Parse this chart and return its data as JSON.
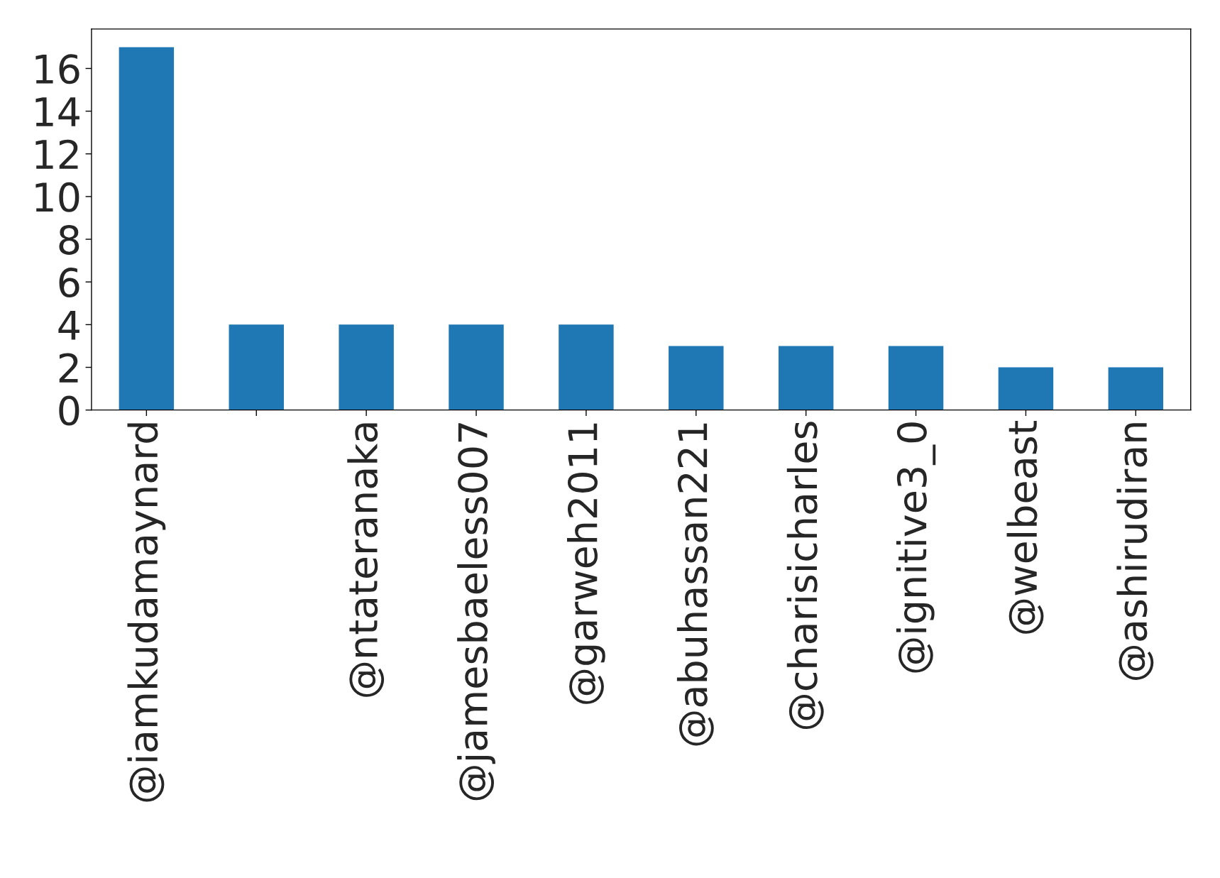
{
  "chart_data": {
    "type": "bar",
    "categories": [
      "@iamkudamaynard",
      null,
      "@ntateranaka",
      "@jamesbaeless007",
      "@garweh2011",
      "@abuhassan221",
      "@charisicharles",
      "@ignitive3_0",
      "@welbeast",
      "@ashirudiran"
    ],
    "values": [
      17,
      4,
      4,
      4,
      4,
      3,
      3,
      3,
      2,
      2
    ],
    "color": "#1f77b4",
    "ylim": [
      0,
      17.85
    ],
    "yticks": [
      0,
      2,
      4,
      6,
      8,
      10,
      12,
      14,
      16
    ],
    "grid": false,
    "legend": false
  }
}
